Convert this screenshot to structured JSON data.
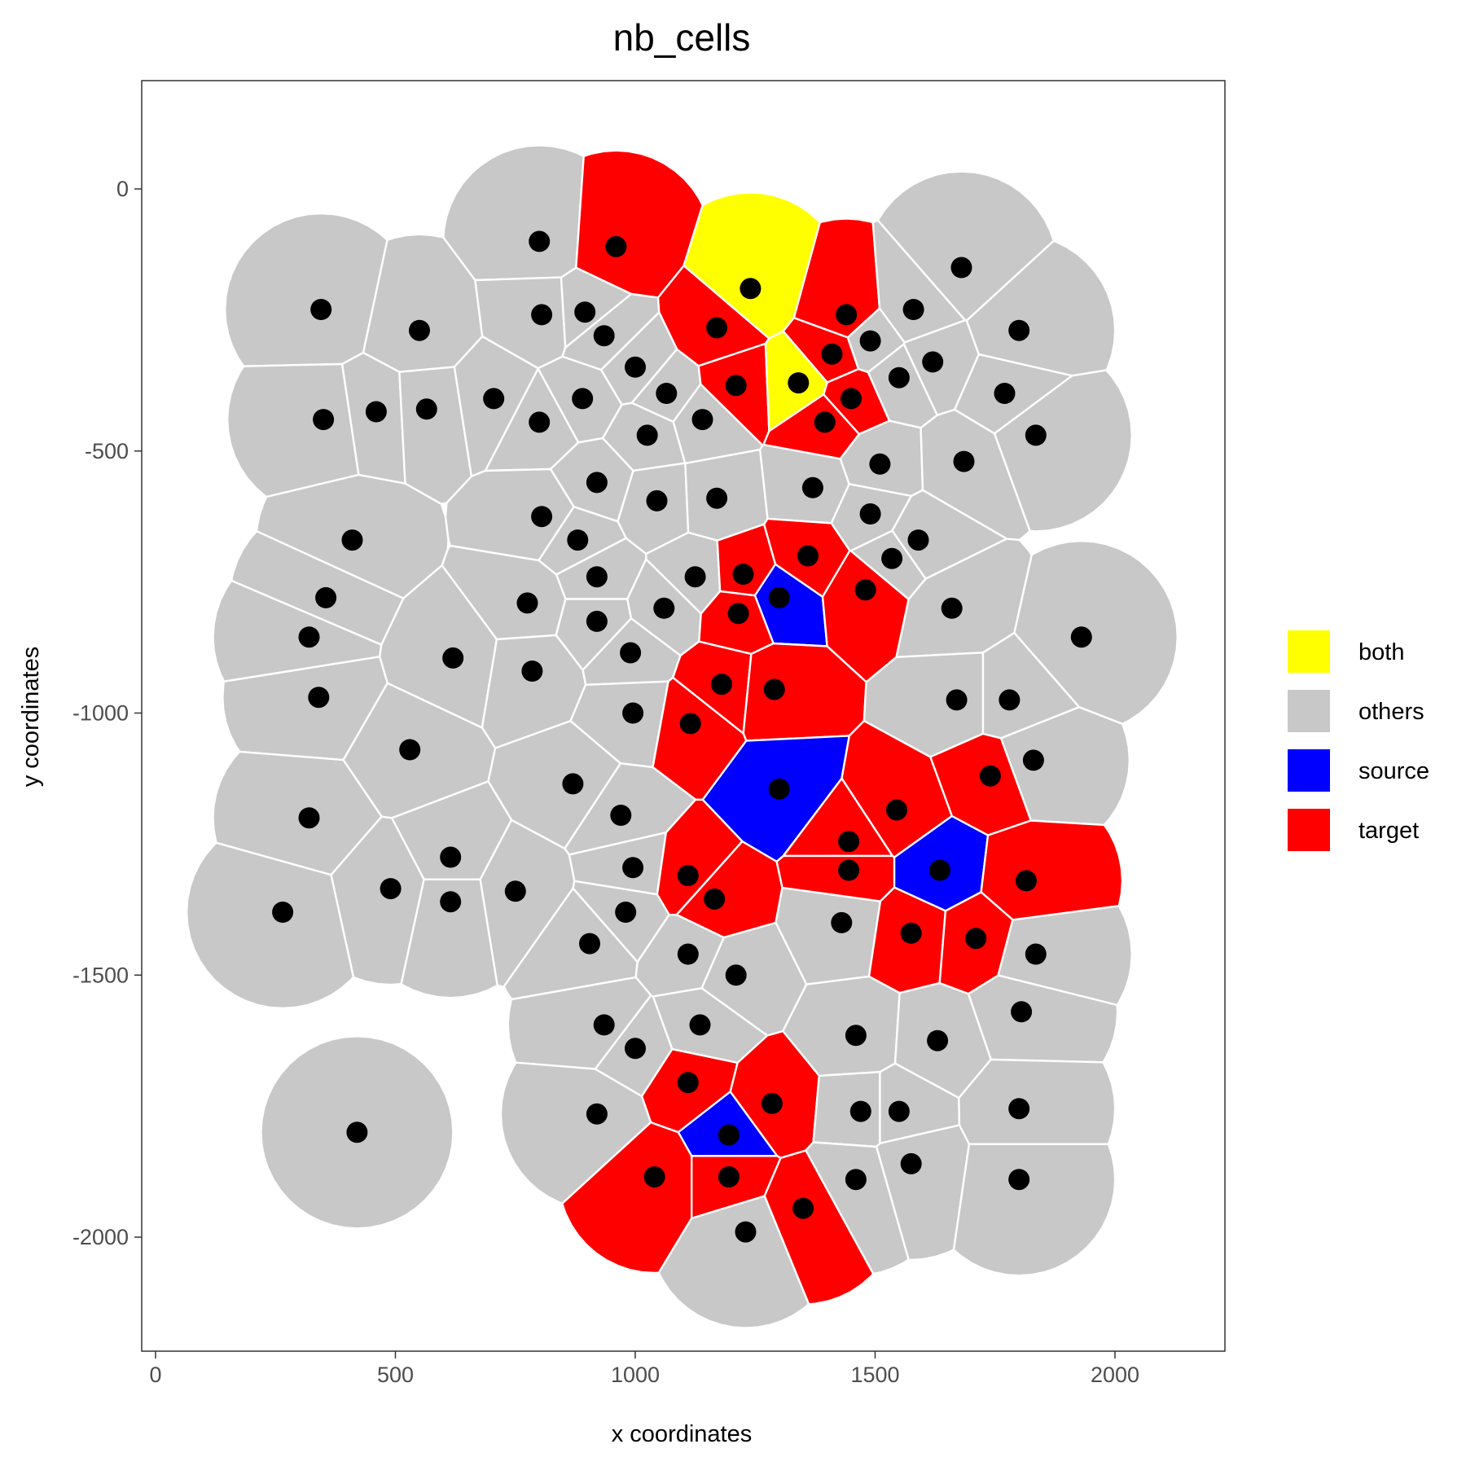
{
  "chart_data": {
    "type": "scatter",
    "title": "nb_cells",
    "xlabel": "x coordinates",
    "ylabel": "y coordinates",
    "xlim": [
      -30,
      2230
    ],
    "ylim": [
      -2290,
      210
    ],
    "x_ticks": [
      0,
      500,
      1000,
      1500,
      2000
    ],
    "y_ticks": [
      0,
      -500,
      -1000,
      -1500,
      -2000
    ],
    "grid": false,
    "legend_position": "right",
    "legend": [
      {
        "label": "both",
        "color": "#FFFF00"
      },
      {
        "label": "others",
        "color": "#C8C8C8"
      },
      {
        "label": "source",
        "color": "#0000FF"
      },
      {
        "label": "target",
        "color": "#FF0000"
      }
    ],
    "cell_border_color": "#FFFFFF",
    "point_color": "#000000",
    "cells": [
      {
        "x": 345,
        "y": -230,
        "group": "others"
      },
      {
        "x": 550,
        "y": -270,
        "group": "others"
      },
      {
        "x": 800,
        "y": -100,
        "group": "others"
      },
      {
        "x": 960,
        "y": -110,
        "group": "target"
      },
      {
        "x": 1240,
        "y": -190,
        "group": "both"
      },
      {
        "x": 1440,
        "y": -240,
        "group": "target"
      },
      {
        "x": 1580,
        "y": -230,
        "group": "others"
      },
      {
        "x": 1680,
        "y": -150,
        "group": "others"
      },
      {
        "x": 1800,
        "y": -270,
        "group": "others"
      },
      {
        "x": 805,
        "y": -240,
        "group": "others"
      },
      {
        "x": 895,
        "y": -235,
        "group": "others"
      },
      {
        "x": 935,
        "y": -280,
        "group": "others"
      },
      {
        "x": 1170,
        "y": -265,
        "group": "target"
      },
      {
        "x": 1410,
        "y": -315,
        "group": "target"
      },
      {
        "x": 1490,
        "y": -290,
        "group": "others"
      },
      {
        "x": 1620,
        "y": -330,
        "group": "others"
      },
      {
        "x": 350,
        "y": -440,
        "group": "others"
      },
      {
        "x": 460,
        "y": -425,
        "group": "others"
      },
      {
        "x": 565,
        "y": -420,
        "group": "others"
      },
      {
        "x": 705,
        "y": -400,
        "group": "others"
      },
      {
        "x": 800,
        "y": -445,
        "group": "others"
      },
      {
        "x": 890,
        "y": -400,
        "group": "others"
      },
      {
        "x": 1000,
        "y": -340,
        "group": "others"
      },
      {
        "x": 1065,
        "y": -390,
        "group": "others"
      },
      {
        "x": 1140,
        "y": -440,
        "group": "others"
      },
      {
        "x": 1210,
        "y": -375,
        "group": "target"
      },
      {
        "x": 1340,
        "y": -370,
        "group": "both"
      },
      {
        "x": 1395,
        "y": -445,
        "group": "target"
      },
      {
        "x": 1450,
        "y": -400,
        "group": "target"
      },
      {
        "x": 1550,
        "y": -360,
        "group": "others"
      },
      {
        "x": 1770,
        "y": -390,
        "group": "others"
      },
      {
        "x": 1835,
        "y": -470,
        "group": "others"
      },
      {
        "x": 1025,
        "y": -470,
        "group": "others"
      },
      {
        "x": 920,
        "y": -560,
        "group": "others"
      },
      {
        "x": 1045,
        "y": -595,
        "group": "others"
      },
      {
        "x": 1170,
        "y": -590,
        "group": "others"
      },
      {
        "x": 1370,
        "y": -570,
        "group": "others"
      },
      {
        "x": 1510,
        "y": -525,
        "group": "others"
      },
      {
        "x": 1685,
        "y": -520,
        "group": "others"
      },
      {
        "x": 410,
        "y": -670,
        "group": "others"
      },
      {
        "x": 805,
        "y": -625,
        "group": "others"
      },
      {
        "x": 880,
        "y": -670,
        "group": "others"
      },
      {
        "x": 1490,
        "y": -620,
        "group": "others"
      },
      {
        "x": 1590,
        "y": -670,
        "group": "others"
      },
      {
        "x": 1360,
        "y": -700,
        "group": "target"
      },
      {
        "x": 355,
        "y": -780,
        "group": "others"
      },
      {
        "x": 920,
        "y": -740,
        "group": "others"
      },
      {
        "x": 1125,
        "y": -740,
        "group": "others"
      },
      {
        "x": 1225,
        "y": -735,
        "group": "target"
      },
      {
        "x": 1300,
        "y": -780,
        "group": "source"
      },
      {
        "x": 1480,
        "y": -765,
        "group": "target"
      },
      {
        "x": 1535,
        "y": -705,
        "group": "others"
      },
      {
        "x": 320,
        "y": -855,
        "group": "others"
      },
      {
        "x": 775,
        "y": -790,
        "group": "others"
      },
      {
        "x": 920,
        "y": -825,
        "group": "others"
      },
      {
        "x": 1060,
        "y": -800,
        "group": "others"
      },
      {
        "x": 1215,
        "y": -810,
        "group": "target"
      },
      {
        "x": 1660,
        "y": -800,
        "group": "others"
      },
      {
        "x": 1930,
        "y": -855,
        "group": "others"
      },
      {
        "x": 620,
        "y": -895,
        "group": "others"
      },
      {
        "x": 990,
        "y": -885,
        "group": "others"
      },
      {
        "x": 340,
        "y": -970,
        "group": "others"
      },
      {
        "x": 785,
        "y": -920,
        "group": "others"
      },
      {
        "x": 1180,
        "y": -945,
        "group": "target"
      },
      {
        "x": 1290,
        "y": -955,
        "group": "target"
      },
      {
        "x": 1670,
        "y": -975,
        "group": "others"
      },
      {
        "x": 1780,
        "y": -975,
        "group": "others"
      },
      {
        "x": 995,
        "y": -1000,
        "group": "others"
      },
      {
        "x": 1115,
        "y": -1020,
        "group": "target"
      },
      {
        "x": 530,
        "y": -1070,
        "group": "others"
      },
      {
        "x": 1830,
        "y": -1090,
        "group": "others"
      },
      {
        "x": 1740,
        "y": -1120,
        "group": "target"
      },
      {
        "x": 870,
        "y": -1135,
        "group": "others"
      },
      {
        "x": 1300,
        "y": -1145,
        "group": "source"
      },
      {
        "x": 320,
        "y": -1200,
        "group": "others"
      },
      {
        "x": 970,
        "y": -1195,
        "group": "others"
      },
      {
        "x": 1545,
        "y": -1185,
        "group": "target"
      },
      {
        "x": 1445,
        "y": -1245,
        "group": "target"
      },
      {
        "x": 615,
        "y": -1275,
        "group": "others"
      },
      {
        "x": 995,
        "y": -1295,
        "group": "others"
      },
      {
        "x": 1110,
        "y": -1310,
        "group": "target"
      },
      {
        "x": 1445,
        "y": -1300,
        "group": "target"
      },
      {
        "x": 1635,
        "y": -1300,
        "group": "source"
      },
      {
        "x": 1815,
        "y": -1320,
        "group": "target"
      },
      {
        "x": 490,
        "y": -1335,
        "group": "others"
      },
      {
        "x": 750,
        "y": -1340,
        "group": "others"
      },
      {
        "x": 1165,
        "y": -1355,
        "group": "target"
      },
      {
        "x": 265,
        "y": -1380,
        "group": "others"
      },
      {
        "x": 615,
        "y": -1360,
        "group": "others"
      },
      {
        "x": 980,
        "y": -1380,
        "group": "others"
      },
      {
        "x": 1430,
        "y": -1400,
        "group": "others"
      },
      {
        "x": 1575,
        "y": -1420,
        "group": "target"
      },
      {
        "x": 1710,
        "y": -1430,
        "group": "target"
      },
      {
        "x": 905,
        "y": -1440,
        "group": "others"
      },
      {
        "x": 1110,
        "y": -1460,
        "group": "others"
      },
      {
        "x": 1835,
        "y": -1460,
        "group": "others"
      },
      {
        "x": 1210,
        "y": -1500,
        "group": "others"
      },
      {
        "x": 1805,
        "y": -1570,
        "group": "others"
      },
      {
        "x": 935,
        "y": -1595,
        "group": "others"
      },
      {
        "x": 1135,
        "y": -1595,
        "group": "others"
      },
      {
        "x": 1460,
        "y": -1615,
        "group": "others"
      },
      {
        "x": 1630,
        "y": -1625,
        "group": "others"
      },
      {
        "x": 1000,
        "y": -1640,
        "group": "others"
      },
      {
        "x": 1110,
        "y": -1705,
        "group": "target"
      },
      {
        "x": 1285,
        "y": -1745,
        "group": "target"
      },
      {
        "x": 920,
        "y": -1765,
        "group": "others"
      },
      {
        "x": 1470,
        "y": -1760,
        "group": "others"
      },
      {
        "x": 1550,
        "y": -1760,
        "group": "others"
      },
      {
        "x": 1800,
        "y": -1755,
        "group": "others"
      },
      {
        "x": 420,
        "y": -1800,
        "group": "others"
      },
      {
        "x": 1195,
        "y": -1805,
        "group": "source"
      },
      {
        "x": 1575,
        "y": -1860,
        "group": "others"
      },
      {
        "x": 1040,
        "y": -1885,
        "group": "target"
      },
      {
        "x": 1195,
        "y": -1885,
        "group": "target"
      },
      {
        "x": 1460,
        "y": -1890,
        "group": "others"
      },
      {
        "x": 1800,
        "y": -1890,
        "group": "others"
      },
      {
        "x": 1350,
        "y": -1945,
        "group": "target"
      },
      {
        "x": 1230,
        "y": -1990,
        "group": "others"
      }
    ]
  }
}
